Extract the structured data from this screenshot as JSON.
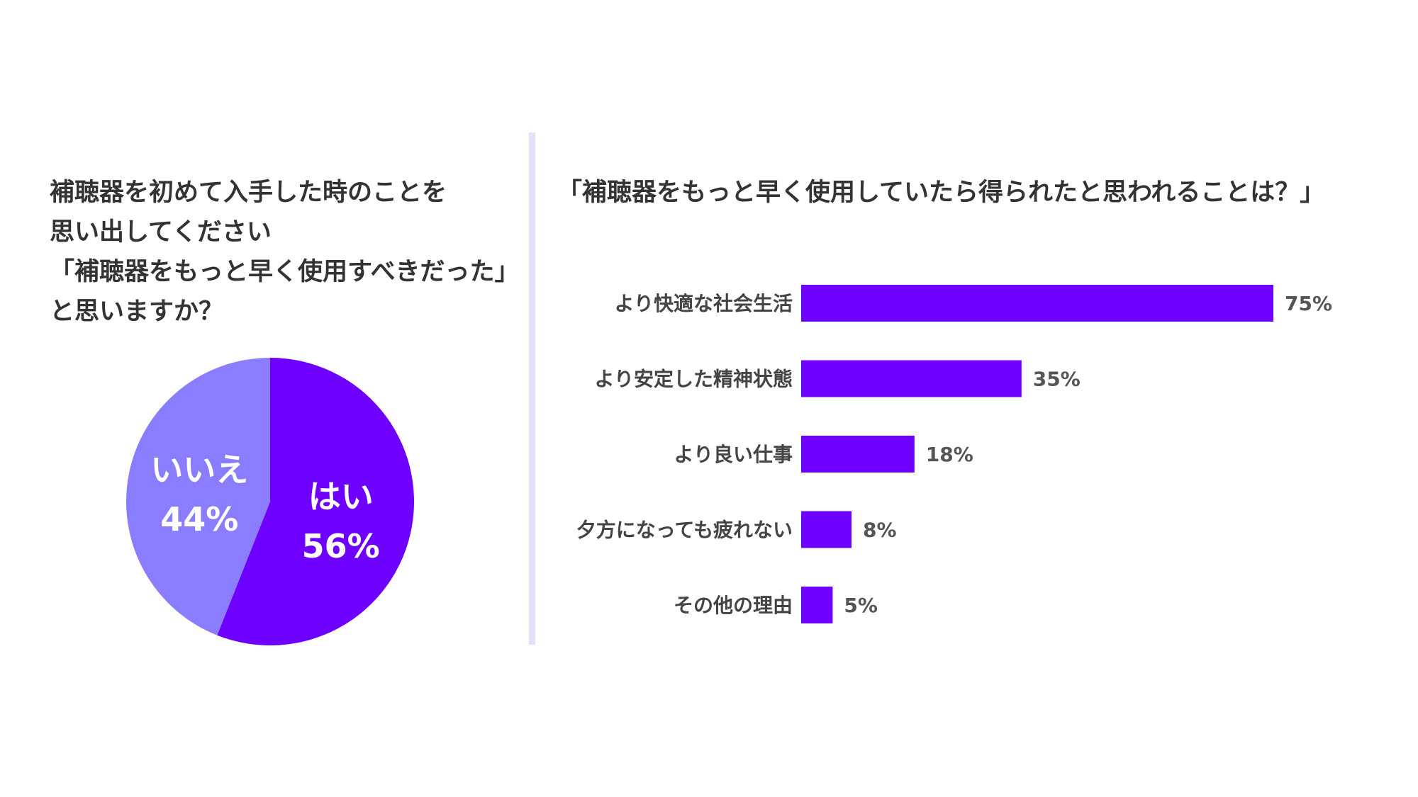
{
  "chart_data": [
    {
      "type": "pie",
      "title_lines": [
        "補聴器を初めて入手した時のことを",
        "思い出してください",
        "「補聴器をもっと早く使用すべきだった」",
        "と思いますか？"
      ],
      "slices": [
        {
          "label": "はい",
          "value": 56,
          "value_label": "56%",
          "color": "#6e00ff"
        },
        {
          "label": "いいえ",
          "value": 44,
          "value_label": "44%",
          "color": "#8b7dff"
        }
      ]
    },
    {
      "type": "bar",
      "orientation": "horizontal",
      "title": "「補聴器をもっと早く使用していたら得られたと思われることは？」",
      "categories": [
        "より快適な社会生活",
        "より安定した精神状態",
        "より良い仕事",
        "夕方になっても疲れない",
        "その他の理由"
      ],
      "values": [
        75,
        35,
        18,
        8,
        5
      ],
      "value_labels": [
        "75%",
        "35%",
        "18%",
        "8%",
        "5%"
      ],
      "color": "#6e00ff"
    }
  ]
}
